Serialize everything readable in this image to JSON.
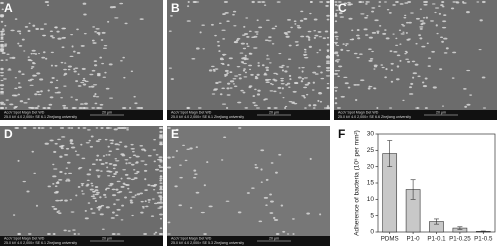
{
  "panels": [
    {
      "label": "A",
      "info_header": "AccV  Spot Magn   Det WD",
      "scale": "20 μm",
      "info": "25.0 kV 4.0  2,000×  SE 6.1  Zhejiang university"
    },
    {
      "label": "B",
      "info_header": "AccV  Spot Magn   Det WD",
      "scale": "20 μm",
      "info": "25.0 kV 4.0  2,000×  SE 6.1  Zhejiang university"
    },
    {
      "label": "C",
      "info_header": "AccV  Spot Magn   Det WD",
      "scale": "20 μm",
      "info": "25.0 kV 4.0  2,000×  SE 6.6  Zhejiang university"
    },
    {
      "label": "D",
      "info_header": "AccV  Spot Magn   Det WD",
      "scale": "20 μm",
      "info": "25.0 kV 4.0  2,000×  SE 6.1  Zhejiang university"
    },
    {
      "label": "E",
      "info_header": "AccV  Spot Magn   Det WD",
      "scale": "20 μm",
      "info": "25.0 kV 4.0  2,000×  SE 5.3  Zhejiang university"
    }
  ],
  "chart_data": {
    "type": "bar",
    "panel_label": "F",
    "y_label": "Adherence of bacteria (10⁵ per mm²)",
    "categories": [
      "PDMS",
      "P1-0",
      "P1-0.1",
      "P1-0.25",
      "P1-0.5"
    ],
    "values": [
      24,
      13,
      3.2,
      1.2,
      0.2
    ],
    "errors": [
      4,
      3,
      0.8,
      0.4,
      0.1
    ],
    "color": "#c8c8c8",
    "ylim": [
      0,
      30
    ],
    "yticks": [
      0,
      5,
      10,
      15,
      20,
      25,
      30
    ]
  }
}
